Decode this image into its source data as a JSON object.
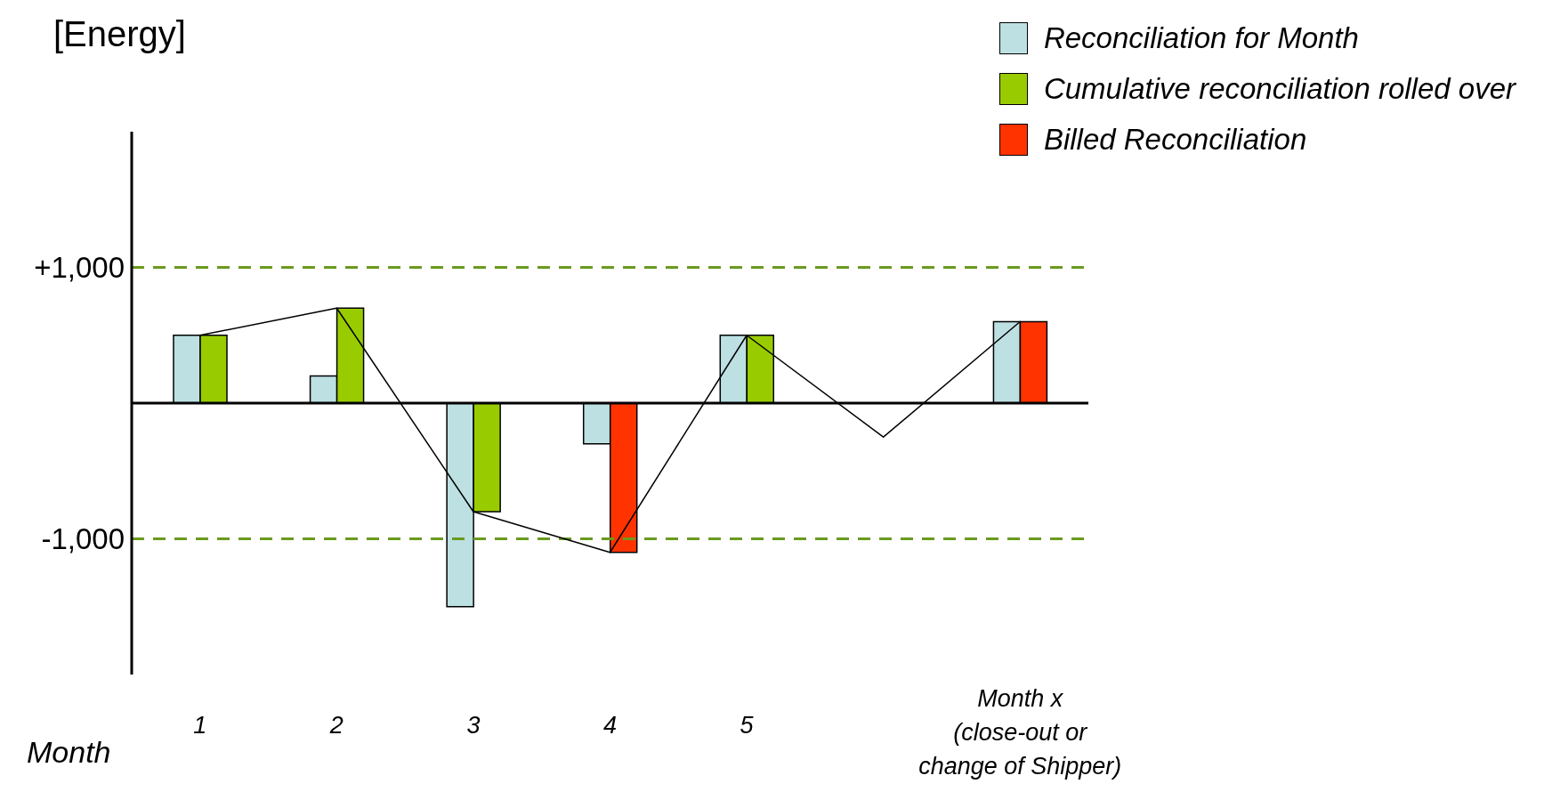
{
  "chart_data": {
    "type": "bar",
    "ylabel": "[Energy]",
    "xlabel": "Month",
    "categories": [
      "1",
      "2",
      "3",
      "4",
      "5",
      null,
      "Month x\n(close-out or\nchange of Shipper)"
    ],
    "series": [
      {
        "name": "Reconciliation for Month",
        "color": "#bde0e2",
        "values": [
          500,
          200,
          -1500,
          -300,
          500,
          null,
          600
        ]
      },
      {
        "name": "Cumulative reconciliation rolled over",
        "color": "#99cc00",
        "values": [
          500,
          700,
          -800,
          null,
          500,
          null,
          null
        ]
      },
      {
        "name": "Billed Reconciliation",
        "color": "#ff3300",
        "values": [
          null,
          null,
          null,
          -1100,
          null,
          null,
          600
        ]
      },
      {
        "type": "line",
        "color": "#000000",
        "values": [
          500,
          700,
          -800,
          -1100,
          500,
          -250,
          600
        ]
      }
    ],
    "ylim": [
      -2000,
      2000
    ],
    "yticks": [
      {
        "value": 1000,
        "label": "+1,000"
      },
      {
        "value": -1000,
        "label": "-1,000"
      }
    ],
    "ref_lines": [
      {
        "axis": "y",
        "value": 1000,
        "color": "#6a9a1f",
        "line_style": "dashed"
      },
      {
        "axis": "y",
        "value": -1000,
        "color": "#6a9a1f",
        "line_style": "dashed"
      }
    ],
    "legend": "top right",
    "grid": false,
    "marker": "none"
  }
}
